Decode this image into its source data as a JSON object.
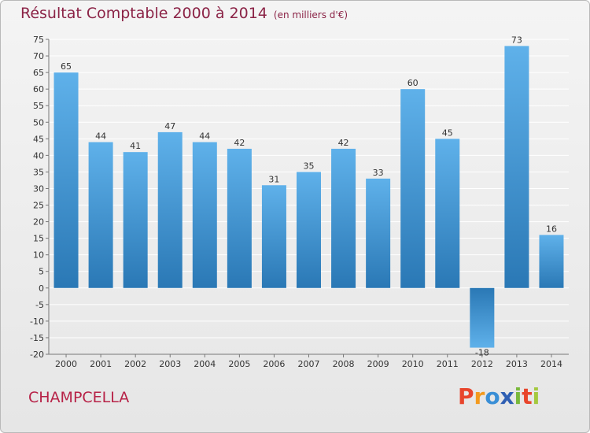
{
  "header": {
    "title": "Résultat Comptable 2000 à 2014",
    "subtitle": "(en milliers d'€)"
  },
  "footer": {
    "commune": "CHAMPCELLA",
    "logo_letters": [
      "P",
      "r",
      "o",
      "x",
      "i",
      "t",
      "i"
    ],
    "logo_colors": [
      "#e8452c",
      "#f39a1e",
      "#3a8fd6",
      "#2f5fb3",
      "#79b83a",
      "#e8452c",
      "#a4c93f"
    ]
  },
  "colors": {
    "bar_light": "#5fb1ea",
    "bar_dark": "#2a78b5",
    "grid": "#ffffff",
    "axis": "#777777",
    "label": "#333333"
  },
  "chart_data": {
    "type": "bar",
    "title": "Résultat Comptable 2000 à 2014",
    "subtitle": "(en milliers d'€)",
    "xlabel": "",
    "ylabel": "",
    "categories": [
      "2000",
      "2001",
      "2002",
      "2003",
      "2004",
      "2005",
      "2006",
      "2007",
      "2008",
      "2009",
      "2010",
      "2011",
      "2012",
      "2013",
      "2014"
    ],
    "values": [
      65,
      44,
      41,
      47,
      44,
      42,
      31,
      35,
      42,
      33,
      60,
      45,
      -18,
      73,
      16
    ],
    "ylim": [
      -20,
      75
    ],
    "ytick_step": 5,
    "grid": true,
    "legend": "none"
  }
}
